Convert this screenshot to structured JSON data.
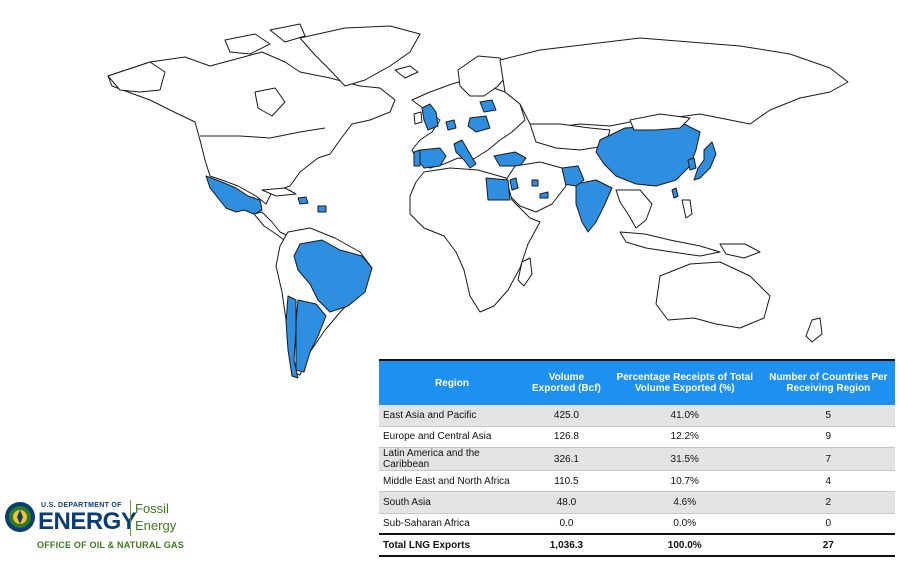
{
  "table": {
    "headers": {
      "region": "Region",
      "volume": "Volume Exported (Bcf)",
      "percentage": "Percentage Receipts of Total Volume Exported (%)",
      "countries": "Number of Countries Per Receiving Region"
    },
    "rows": [
      {
        "region": "East Asia and Pacific",
        "volume": "425.0",
        "percentage": "41.0%",
        "countries": "5"
      },
      {
        "region": "Europe and Central Asia",
        "volume": "126.8",
        "percentage": "12.2%",
        "countries": "9"
      },
      {
        "region": "Latin America and the Caribbean",
        "volume": "326.1",
        "percentage": "31.5%",
        "countries": "7"
      },
      {
        "region": "Middle East and North Africa",
        "volume": "110.5",
        "percentage": "10.7%",
        "countries": "4"
      },
      {
        "region": "South Asia",
        "volume": "48.0",
        "percentage": "4.6%",
        "countries": "2"
      },
      {
        "region": "Sub-Saharan Africa",
        "volume": "0.0",
        "percentage": "0.0%",
        "countries": "0"
      }
    ],
    "total": {
      "region": "Total LNG Exports",
      "volume": "1,036.3",
      "percentage": "100.0%",
      "countries": "27"
    }
  },
  "logo": {
    "department": "U.S. DEPARTMENT OF",
    "energy": "ENERGY",
    "fossil": "Fossil",
    "energy2": "Energy",
    "office": "OFFICE OF OIL & NATURAL GAS"
  },
  "colors": {
    "highlight": "#2e8ee0",
    "header": "#1e90f0"
  },
  "map": {
    "highlighted_countries": [
      "Mexico",
      "Dominican Republic",
      "Brazil",
      "Argentina",
      "Chile",
      "United Kingdom",
      "Spain",
      "Italy",
      "Portugal",
      "Poland",
      "Lithuania",
      "Netherlands",
      "Turkey",
      "Egypt",
      "Jordan",
      "Kuwait",
      "UAE",
      "Pakistan",
      "India",
      "China",
      "South Korea",
      "Japan",
      "Taiwan"
    ]
  }
}
